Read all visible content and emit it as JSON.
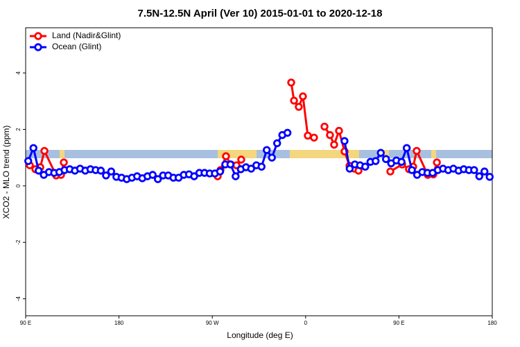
{
  "chart_data": {
    "type": "line",
    "title": "7.5N-12.5N April (Ver 10)   2015-01-01 to 2020-12-18",
    "x_label": "Longitude (deg E)",
    "y_label": "XCO2 - MLO trend (ppm)",
    "xlim": [
      90,
      540
    ],
    "xticks": [
      {
        "value": 90,
        "label": "90 E"
      },
      180,
      {
        "value": 270,
        "label": "90 W"
      },
      {
        "value": 360,
        "label": "0"
      },
      {
        "value": 450,
        "label": "90 E"
      },
      {
        "value": 540,
        "label": "180"
      }
    ],
    "ylim": [
      -4.6,
      5.6
    ],
    "yticks": [
      -4,
      -2,
      0,
      2,
      4
    ],
    "legend": "topleft",
    "series": [
      {
        "name": "Land (Nadir&Glint)",
        "color": "#ff0000",
        "x": [
          94.0,
          99.4,
          104.1,
          108.1,
          119.4,
          124.1,
          126.8,
          null,
          275.2,
          277.9,
          283.2,
          287.9,
          293.3,
          297.9,
          null,
          346.1,
          348.8,
          353.4,
          357.4,
          362.1,
          368.1,
          null,
          378.2,
          383.5,
          387.5,
          392.2,
          397.6,
          402.3,
          407.0,
          411.0,
          null,
          441.7,
          453.1,
          459.7,
          463.7,
          467.1,
          477.8,
          483.2,
          486.6
        ],
        "values": [
          0.73,
          0.59,
          0.66,
          1.24,
          0.37,
          0.39,
          0.83,
          null,
          0.34,
          0.56,
          1.05,
          0.76,
          0.73,
          0.93,
          null,
          3.66,
          3.02,
          2.8,
          3.17,
          1.78,
          1.71,
          null,
          2.1,
          1.8,
          1.46,
          1.95,
          1.22,
          0.71,
          0.61,
          0.54,
          null,
          0.51,
          0.76,
          0.59,
          0.68,
          1.24,
          0.39,
          0.41,
          0.83
        ]
      },
      {
        "name": "Ocean (Glint)",
        "color": "#0000ff",
        "x": [
          92.5,
          97.5,
          102.5,
          107.5,
          112.5,
          117.5,
          122.5,
          127.5,
          132.5,
          137.5,
          142.5,
          147.5,
          152.5,
          157.5,
          162.5,
          167.5,
          172.5,
          177.5,
          182.5,
          187.5,
          192.5,
          197.5,
          202.5,
          207.5,
          212.5,
          217.5,
          222.5,
          227.5,
          232.5,
          237.5,
          242.5,
          247.5,
          252.5,
          257.5,
          262.5,
          267.5,
          272.5,
          277.5,
          282.5,
          287.5,
          292.5,
          297.5,
          302.5,
          307.5,
          312.5,
          317.5,
          322.5,
          327.5,
          332.5,
          337.5,
          342.5,
          347.5,
          352.5,
          357.5,
          362.5,
          367.5,
          372.5,
          377.5,
          382.5,
          387.5,
          392.5,
          397.5,
          402.5,
          407.5,
          412.5,
          417.5,
          422.5,
          427.5,
          432.5,
          437.5,
          442.5,
          447.5,
          452.5,
          457.5,
          462.5,
          467.5,
          472.5,
          477.5,
          482.5,
          487.5,
          492.5,
          497.5,
          502.5,
          507.5,
          512.5,
          517.5,
          522.5,
          527.5,
          532.5,
          537.5
        ],
        "values": [
          0.88,
          1.34,
          0.54,
          0.39,
          0.49,
          0.46,
          0.49,
          0.56,
          0.59,
          0.54,
          0.61,
          0.54,
          0.59,
          0.56,
          0.54,
          0.37,
          0.51,
          0.32,
          0.29,
          0.24,
          0.29,
          0.34,
          0.27,
          0.34,
          0.39,
          0.24,
          0.37,
          0.37,
          0.29,
          0.29,
          0.39,
          0.41,
          0.34,
          0.46,
          0.46,
          0.44,
          0.44,
          0.51,
          0.76,
          0.76,
          0.34,
          0.59,
          0.66,
          0.61,
          0.73,
          0.68,
          1.27,
          1.0,
          1.51,
          1.8,
          1.88,
          null,
          null,
          null,
          null,
          null,
          null,
          null,
          null,
          null,
          null,
          1.59,
          0.61,
          0.76,
          0.73,
          0.68,
          0.85,
          0.88,
          1.17,
          0.95,
          0.8,
          0.9,
          0.85,
          1.34,
          0.56,
          0.39,
          0.49,
          0.46,
          0.46,
          0.56,
          0.61,
          0.56,
          0.61,
          0.54,
          0.59,
          0.56,
          0.56,
          0.34,
          0.51,
          0.32
        ]
      }
    ]
  }
}
